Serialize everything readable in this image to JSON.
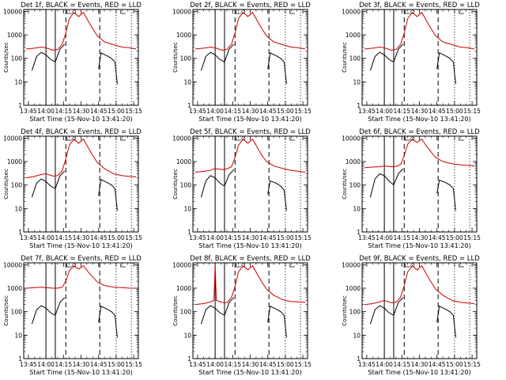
{
  "figure": {
    "x_tick_labels": [
      "13:45",
      "14:00",
      "14:15",
      "14:30",
      "14:45",
      "15:00",
      "15:15"
    ],
    "y_tick_labels": [
      "1",
      "10",
      "100",
      "1000",
      "10000"
    ],
    "xlabel": "Start Time (15-Nov-10 13:41:20)",
    "ylabel": "Counts/sec",
    "colors": {
      "events": "#000000",
      "lld": "#cc0000",
      "axes": "#000000",
      "background": "#ffffff"
    }
  },
  "chart_data": [
    {
      "type": "line",
      "title": "Det 1f, BLACK = Events, RED = LLD",
      "xlabel": "Start Time (15-Nov-10 13:41:20)",
      "ylabel": "Counts/sec",
      "xlim": [
        "13:41",
        "15:19"
      ],
      "ylim": [
        1,
        12000
      ],
      "yscale": "log",
      "solid_markers": [
        "14:00",
        "14:08"
      ],
      "dashed_markers": [
        "14:17",
        "14:46"
      ],
      "dotted_markers": [
        "15:00",
        "15:13"
      ],
      "series": [
        {
          "color": "#000000",
          "x": [
            "13:48",
            "13:52",
            "13:56",
            "14:00",
            "14:04",
            "14:08",
            "14:12",
            "14:16",
            "14:45",
            "14:47",
            "14:52",
            "14:56",
            "14:59",
            "15:01"
          ],
          "y": [
            30,
            120,
            180,
            140,
            90,
            70,
            250,
            400,
            35,
            170,
            130,
            100,
            70,
            8
          ]
        },
        {
          "color": "#cc0000",
          "x": [
            "13:43",
            "13:50",
            "13:56",
            "14:00",
            "14:06",
            "14:10",
            "14:14",
            "14:17",
            "14:20",
            "14:24",
            "14:28",
            "14:32",
            "14:36",
            "14:40",
            "14:44",
            "14:50",
            "14:58",
            "15:05",
            "15:12",
            "15:17"
          ],
          "y": [
            250,
            270,
            300,
            280,
            220,
            240,
            400,
            1200,
            5000,
            9000,
            6000,
            9000,
            4000,
            1800,
            900,
            500,
            380,
            300,
            280,
            250
          ]
        }
      ]
    },
    {
      "type": "line",
      "title": "Det 2f, BLACK = Events, RED = LLD",
      "xlabel": "Start Time (15-Nov-10 13:41:20)",
      "ylabel": "Counts/sec",
      "xlim": [
        "13:41",
        "15:19"
      ],
      "ylim": [
        1,
        12000
      ],
      "yscale": "log",
      "solid_markers": [
        "14:00",
        "14:08"
      ],
      "dashed_markers": [
        "14:17",
        "14:46"
      ],
      "dotted_markers": [
        "15:00",
        "15:13"
      ],
      "series": [
        {
          "color": "#000000",
          "x": [
            "13:48",
            "13:52",
            "13:56",
            "14:00",
            "14:04",
            "14:08",
            "14:12",
            "14:16",
            "14:45",
            "14:47",
            "14:52",
            "14:56",
            "14:59",
            "15:01"
          ],
          "y": [
            30,
            120,
            180,
            140,
            90,
            70,
            250,
            400,
            35,
            170,
            130,
            100,
            70,
            8
          ]
        },
        {
          "color": "#cc0000",
          "x": [
            "13:43",
            "13:50",
            "13:56",
            "14:00",
            "14:06",
            "14:10",
            "14:14",
            "14:17",
            "14:20",
            "14:24",
            "14:28",
            "14:32",
            "14:36",
            "14:40",
            "14:44",
            "14:50",
            "14:58",
            "15:05",
            "15:12",
            "15:17"
          ],
          "y": [
            250,
            270,
            300,
            280,
            220,
            240,
            400,
            1200,
            5000,
            9000,
            6000,
            9000,
            4000,
            1800,
            900,
            500,
            380,
            300,
            280,
            250
          ]
        }
      ]
    },
    {
      "type": "line",
      "title": "Det 3f, BLACK = Events, RED = LLD",
      "xlabel": "Start Time (15-Nov-10 13:41:20)",
      "ylabel": "Counts/sec",
      "xlim": [
        "13:41",
        "15:19"
      ],
      "ylim": [
        1,
        12000
      ],
      "yscale": "log",
      "solid_markers": [
        "14:00",
        "14:08"
      ],
      "dashed_markers": [
        "14:17",
        "14:46"
      ],
      "dotted_markers": [
        "15:00",
        "15:13"
      ],
      "series": [
        {
          "color": "#000000",
          "x": [
            "13:48",
            "13:52",
            "13:56",
            "14:00",
            "14:04",
            "14:08",
            "14:12",
            "14:16",
            "14:45",
            "14:47",
            "14:52",
            "14:56",
            "14:59",
            "15:01"
          ],
          "y": [
            30,
            120,
            180,
            140,
            90,
            70,
            250,
            400,
            35,
            170,
            130,
            100,
            70,
            8
          ]
        },
        {
          "color": "#cc0000",
          "x": [
            "13:43",
            "13:50",
            "13:56",
            "14:00",
            "14:06",
            "14:10",
            "14:14",
            "14:17",
            "14:20",
            "14:24",
            "14:28",
            "14:32",
            "14:36",
            "14:40",
            "14:44",
            "14:50",
            "14:58",
            "15:05",
            "15:12",
            "15:17"
          ],
          "y": [
            250,
            270,
            300,
            280,
            220,
            240,
            400,
            1200,
            5000,
            9000,
            6000,
            9000,
            4000,
            1800,
            900,
            500,
            380,
            300,
            280,
            250
          ]
        }
      ]
    },
    {
      "type": "line",
      "title": "Det 4f, BLACK = Events, RED = LLD",
      "xlabel": "Start Time (15-Nov-10 13:41:20)",
      "ylabel": "Counts/sec",
      "xlim": [
        "13:41",
        "15:19"
      ],
      "ylim": [
        1,
        12000
      ],
      "yscale": "log",
      "solid_markers": [
        "14:00",
        "14:08"
      ],
      "dashed_markers": [
        "14:17",
        "14:46"
      ],
      "dotted_markers": [
        "15:00",
        "15:13"
      ],
      "series": [
        {
          "color": "#000000",
          "x": [
            "13:48",
            "13:52",
            "13:56",
            "14:00",
            "14:04",
            "14:08",
            "14:12",
            "14:16",
            "14:45",
            "14:47",
            "14:52",
            "14:56",
            "14:59",
            "15:01"
          ],
          "y": [
            30,
            120,
            180,
            140,
            90,
            70,
            250,
            400,
            35,
            170,
            130,
            100,
            70,
            8
          ]
        },
        {
          "color": "#cc0000",
          "x": [
            "13:43",
            "13:50",
            "13:56",
            "14:00",
            "14:06",
            "14:10",
            "14:14",
            "14:17",
            "14:20",
            "14:24",
            "14:28",
            "14:32",
            "14:36",
            "14:40",
            "14:44",
            "14:50",
            "14:58",
            "15:05",
            "15:12",
            "15:17"
          ],
          "y": [
            200,
            230,
            280,
            300,
            240,
            250,
            420,
            1300,
            5000,
            9000,
            6000,
            9000,
            4000,
            1800,
            900,
            500,
            300,
            250,
            230,
            220
          ]
        }
      ]
    },
    {
      "type": "line",
      "title": "Det 5f, BLACK = Events, RED = LLD",
      "xlabel": "Start Time (15-Nov-10 13:41:20)",
      "ylabel": "Counts/sec",
      "xlim": [
        "13:41",
        "15:19"
      ],
      "ylim": [
        1,
        12000
      ],
      "yscale": "log",
      "solid_markers": [
        "14:00",
        "14:08"
      ],
      "dashed_markers": [
        "14:17",
        "14:46"
      ],
      "dotted_markers": [
        "15:00",
        "15:13"
      ],
      "series": [
        {
          "color": "#000000",
          "x": [
            "13:48",
            "13:52",
            "13:56",
            "14:00",
            "14:04",
            "14:08",
            "14:12",
            "14:16",
            "14:45",
            "14:47",
            "14:52",
            "14:56",
            "14:59",
            "15:01"
          ],
          "y": [
            30,
            150,
            250,
            200,
            120,
            90,
            280,
            450,
            40,
            150,
            120,
            90,
            60,
            8
          ]
        },
        {
          "color": "#cc0000",
          "x": [
            "13:43",
            "13:50",
            "13:56",
            "14:00",
            "14:06",
            "14:10",
            "14:14",
            "14:17",
            "14:20",
            "14:24",
            "14:28",
            "14:32",
            "14:36",
            "14:40",
            "14:44",
            "14:50",
            "14:58",
            "15:05",
            "15:12",
            "15:17"
          ],
          "y": [
            350,
            380,
            420,
            500,
            450,
            480,
            600,
            1500,
            5000,
            9000,
            6000,
            9000,
            4000,
            1800,
            1000,
            650,
            500,
            420,
            380,
            350
          ]
        }
      ]
    },
    {
      "type": "line",
      "title": "Det 6f, BLACK = Events, RED = LLD",
      "xlabel": "Start Time (15-Nov-10 13:41:20)",
      "ylabel": "Counts/sec",
      "xlim": [
        "13:41",
        "15:19"
      ],
      "ylim": [
        1,
        12000
      ],
      "yscale": "log",
      "solid_markers": [
        "14:00",
        "14:08"
      ],
      "dashed_markers": [
        "14:17",
        "14:46"
      ],
      "dotted_markers": [
        "15:00",
        "15:13"
      ],
      "series": [
        {
          "color": "#000000",
          "x": [
            "13:48",
            "13:52",
            "13:56",
            "14:00",
            "14:04",
            "14:08",
            "14:12",
            "14:16",
            "14:45",
            "14:47",
            "14:52",
            "14:56",
            "14:59",
            "15:01"
          ],
          "y": [
            30,
            180,
            300,
            250,
            150,
            100,
            300,
            500,
            45,
            160,
            130,
            100,
            70,
            8
          ]
        },
        {
          "color": "#cc0000",
          "x": [
            "13:43",
            "13:50",
            "13:56",
            "14:00",
            "14:06",
            "14:10",
            "14:14",
            "14:17",
            "14:20",
            "14:24",
            "14:28",
            "14:32",
            "14:36",
            "14:40",
            "14:44",
            "14:50",
            "14:58",
            "15:05",
            "15:12",
            "15:17"
          ],
          "y": [
            550,
            580,
            600,
            650,
            600,
            620,
            750,
            1800,
            5500,
            9000,
            6500,
            9000,
            4500,
            2500,
            1500,
            1000,
            800,
            720,
            680,
            650
          ]
        }
      ]
    },
    {
      "type": "line",
      "title": "Det 7f, BLACK = Events, RED = LLD",
      "xlabel": "Start Time (15-Nov-10 13:41:20)",
      "ylabel": "Counts/sec",
      "xlim": [
        "13:41",
        "15:19"
      ],
      "ylim": [
        1,
        12000
      ],
      "yscale": "log",
      "solid_markers": [
        "14:00",
        "14:08"
      ],
      "dashed_markers": [
        "14:17",
        "14:46"
      ],
      "dotted_markers": [
        "15:00",
        "15:13"
      ],
      "series": [
        {
          "color": "#000000",
          "x": [
            "13:48",
            "13:52",
            "13:56",
            "14:00",
            "14:04",
            "14:08",
            "14:12",
            "14:16",
            "14:45",
            "14:47",
            "14:52",
            "14:56",
            "14:59",
            "15:01"
          ],
          "y": [
            30,
            120,
            180,
            140,
            90,
            70,
            250,
            400,
            35,
            170,
            130,
            100,
            70,
            8
          ]
        },
        {
          "color": "#cc0000",
          "x": [
            "13:43",
            "13:50",
            "13:56",
            "14:00",
            "14:06",
            "14:10",
            "14:14",
            "14:17",
            "14:20",
            "14:24",
            "14:28",
            "14:32",
            "14:36",
            "14:40",
            "14:44",
            "14:50",
            "14:58",
            "15:05",
            "15:12",
            "15:17"
          ],
          "y": [
            1000,
            1050,
            1100,
            1050,
            1000,
            1000,
            1100,
            2000,
            5500,
            9000,
            6500,
            9000,
            5000,
            3000,
            1800,
            1300,
            1100,
            1050,
            1000,
            1000
          ]
        }
      ]
    },
    {
      "type": "line",
      "title": "Det 8f, BLACK = Events, RED = LLD",
      "xlabel": "Start Time (15-Nov-10 13:41:20)",
      "ylabel": "Counts/sec",
      "xlim": [
        "13:41",
        "15:19"
      ],
      "ylim": [
        1,
        12000
      ],
      "yscale": "log",
      "solid_markers": [
        "14:00",
        "14:08"
      ],
      "dashed_markers": [
        "14:17",
        "14:46"
      ],
      "dotted_markers": [
        "15:00",
        "15:13"
      ],
      "series": [
        {
          "color": "#000000",
          "x": [
            "13:48",
            "13:52",
            "13:56",
            "14:00",
            "14:04",
            "14:08",
            "14:12",
            "14:16",
            "14:45",
            "14:47",
            "14:52",
            "14:56",
            "14:59",
            "15:01"
          ],
          "y": [
            30,
            120,
            180,
            140,
            90,
            70,
            250,
            400,
            35,
            170,
            130,
            100,
            70,
            8
          ]
        },
        {
          "color": "#cc0000",
          "x": [
            "13:43",
            "13:50",
            "13:56",
            "13:59",
            "14:00",
            "14:01",
            "14:06",
            "14:10",
            "14:14",
            "14:17",
            "14:20",
            "14:24",
            "14:28",
            "14:32",
            "14:36",
            "14:40",
            "14:44",
            "14:50",
            "14:58",
            "15:05",
            "15:12",
            "15:17"
          ],
          "y": [
            200,
            220,
            260,
            300,
            10000,
            300,
            250,
            240,
            400,
            1200,
            5000,
            9000,
            6000,
            9000,
            4000,
            1800,
            900,
            500,
            320,
            270,
            260,
            250
          ]
        }
      ]
    },
    {
      "type": "line",
      "title": "Det 9f, BLACK = Events, RED = LLD",
      "xlabel": "Start Time (15-Nov-10 13:41:20)",
      "ylabel": "Counts/sec",
      "xlim": [
        "13:41",
        "15:19"
      ],
      "ylim": [
        1,
        12000
      ],
      "yscale": "log",
      "solid_markers": [
        "14:00",
        "14:08"
      ],
      "dashed_markers": [
        "14:17",
        "14:46"
      ],
      "dotted_markers": [
        "15:00",
        "15:13"
      ],
      "series": [
        {
          "color": "#000000",
          "x": [
            "13:48",
            "13:52",
            "13:56",
            "14:00",
            "14:04",
            "14:08",
            "14:12",
            "14:16",
            "14:45",
            "14:47",
            "14:52",
            "14:56",
            "14:59",
            "15:01"
          ],
          "y": [
            30,
            120,
            180,
            140,
            90,
            70,
            250,
            400,
            35,
            170,
            130,
            100,
            70,
            8
          ]
        },
        {
          "color": "#cc0000",
          "x": [
            "13:43",
            "13:50",
            "13:56",
            "14:00",
            "14:06",
            "14:10",
            "14:14",
            "14:17",
            "14:20",
            "14:24",
            "14:28",
            "14:32",
            "14:36",
            "14:40",
            "14:44",
            "14:50",
            "14:58",
            "15:05",
            "15:12",
            "15:17"
          ],
          "y": [
            200,
            220,
            260,
            300,
            240,
            250,
            420,
            1300,
            5000,
            9000,
            6000,
            9000,
            4000,
            1800,
            900,
            500,
            300,
            250,
            230,
            220
          ]
        }
      ]
    }
  ]
}
